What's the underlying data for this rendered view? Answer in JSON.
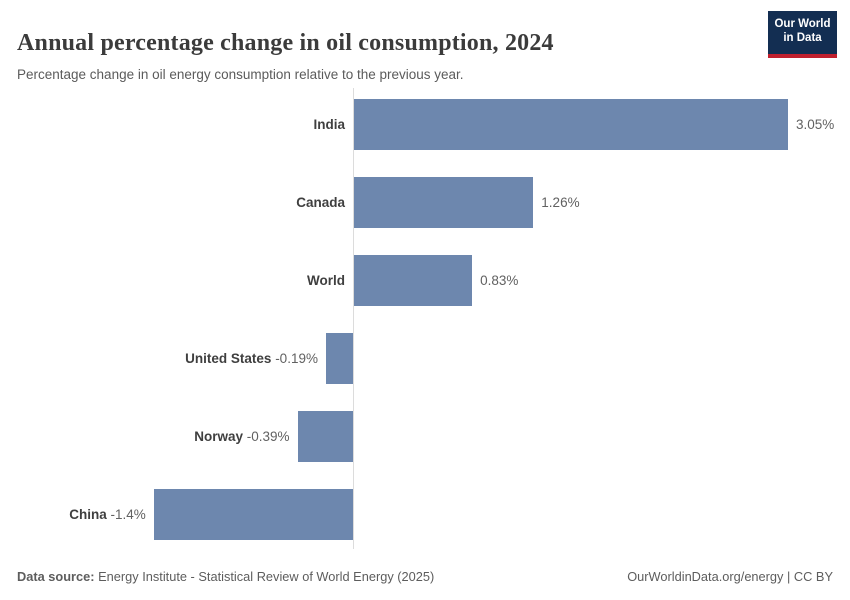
{
  "header": {
    "title": "Annual percentage change in oil consumption, 2024",
    "subtitle": "Percentage change in oil energy consumption relative to the previous year.",
    "logo": {
      "line1": "Our World",
      "line2": "in Data"
    }
  },
  "chart_data": {
    "type": "bar",
    "orientation": "horizontal",
    "title": "Annual percentage change in oil consumption, 2024",
    "subtitle": "Percentage change in oil energy consumption relative to the previous year.",
    "categories": [
      "India",
      "Canada",
      "World",
      "United States",
      "Norway",
      "China"
    ],
    "values": [
      3.05,
      1.26,
      0.83,
      -0.19,
      -0.39,
      -1.4
    ],
    "value_labels": [
      "3.05%",
      "1.26%",
      "0.83%",
      "-0.19%",
      "-0.39%",
      "-1.4%"
    ],
    "xlabel": "",
    "ylabel": "",
    "xlim": [
      -1.4,
      3.05
    ],
    "grid": false,
    "legend": "none",
    "bar_color": "#6d87ae"
  },
  "colors": {
    "bar": "#6d87ae",
    "axis_line": "#dcdcdc",
    "logo_background": "#132e52",
    "logo_accent": "#c0202e",
    "title_text": "#3b3b3b",
    "subtitle_text": "#5b5b5b",
    "entity_label_text": "#3f3f3f",
    "value_label_text": "#616161"
  },
  "footer": {
    "datasource_label": "Data source:",
    "datasource_text": " Energy Institute - Statistical Review of World Energy (2025)",
    "right_text": "OurWorldinData.org/energy | CC BY"
  }
}
